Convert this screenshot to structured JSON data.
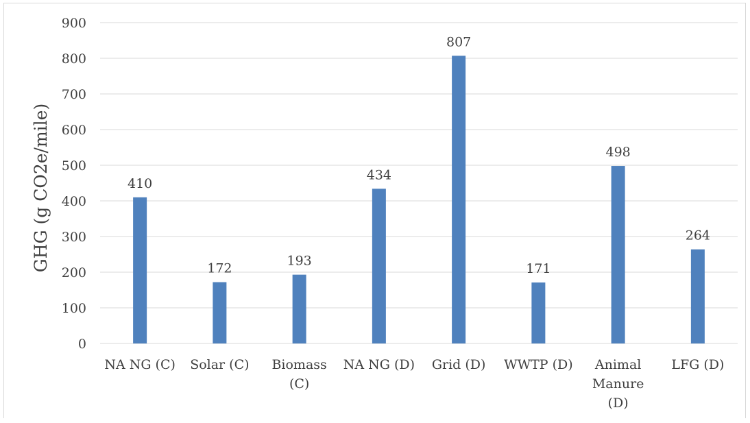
{
  "chart_data": {
    "type": "bar",
    "title": "",
    "xlabel": "",
    "ylabel": "GHG (g CO2e/mile)",
    "ylim": [
      0,
      900
    ],
    "yticks": [
      0,
      100,
      200,
      300,
      400,
      500,
      600,
      700,
      800,
      900
    ],
    "grid": true,
    "legend": "none",
    "bar_color": "#4F81BD",
    "categories": [
      "NA NG (C)",
      "Solar (C)",
      "Biomass (C)",
      "NA NG (D)",
      "Grid (D)",
      "WWTP (D)",
      "Animal Manure (D)",
      "LFG (D)"
    ],
    "category_lines": [
      [
        "NA NG (C)"
      ],
      [
        "Solar (C)"
      ],
      [
        "Biomass",
        "(C)"
      ],
      [
        "NA NG (D)"
      ],
      [
        "Grid (D)"
      ],
      [
        "WWTP (D)"
      ],
      [
        "Animal",
        "Manure",
        "(D)"
      ],
      [
        "LFG (D)"
      ]
    ],
    "values": [
      410,
      172,
      193,
      434,
      807,
      171,
      498,
      264
    ],
    "data_labels": [
      "410",
      "172",
      "193",
      "434",
      "807",
      "171",
      "498",
      "264"
    ]
  }
}
